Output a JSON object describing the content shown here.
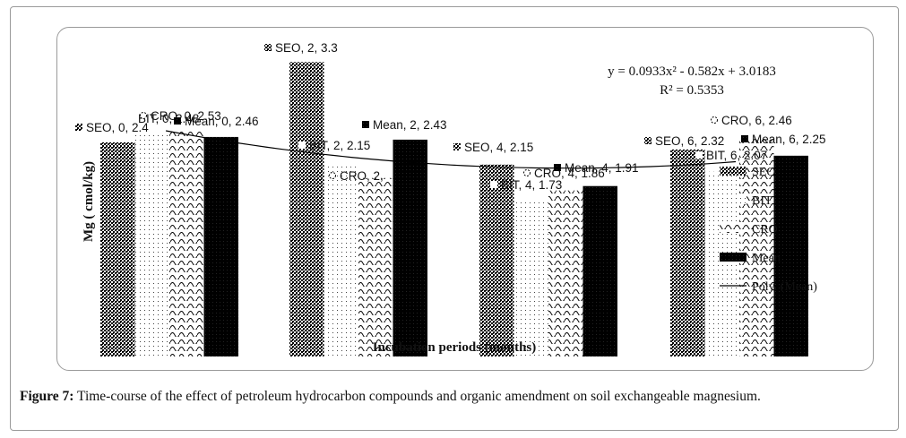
{
  "caption": {
    "label": "Figure 7:",
    "text": " Time-course of the effect of petroleum hydrocarbon compounds and organic amendment on soil exchangeable magnesium."
  },
  "chart_data": {
    "type": "bar",
    "ylabel": "Mg ( cmol/kg)",
    "xlabel": "Incubation periods (months)",
    "categories": [
      "0",
      "2",
      "4",
      "6"
    ],
    "series": [
      {
        "name": "SEO",
        "values": [
          2.4,
          3.3,
          2.15,
          2.32
        ],
        "pattern": "dense-check"
      },
      {
        "name": "BIT",
        "values": [
          2.48,
          2.15,
          1.73,
          2.07
        ],
        "pattern": "dotted"
      },
      {
        "name": "CRO",
        "values": [
          2.53,
          2.0,
          1.86,
          2.46
        ],
        "pattern": "wave"
      },
      {
        "name": "Mean",
        "values": [
          2.46,
          2.43,
          1.91,
          2.25
        ],
        "pattern": "solid"
      }
    ],
    "data_labels": [
      [
        "SEO, 0, 2.4",
        "BIT, 0, 2.48",
        "CRO, 0, 2.53",
        "Mean, 0, 2.46"
      ],
      [
        "SEO, 2, 3.3",
        "BIT, 2, 2.15",
        "CRO, 2,",
        "Mean, 2, 2.43"
      ],
      [
        "SEO, 4, 2.15",
        "BIT, 4, 1.73",
        "CRO, 4, 1.86",
        "Mean, 4, 1.91"
      ],
      [
        "SEO, 6, 2.32",
        "BIT, 6, 2.07",
        "CRO, 6, 2.46",
        "Mean, 6, 2.25"
      ]
    ],
    "trendline": {
      "name": "Poly. (Mean)",
      "equation": "y = 0.0933x² - 0.582x + 3.0183",
      "r2": "R² = 0.5353",
      "coef": [
        0.0933,
        -0.582,
        3.0183
      ]
    },
    "legend": {
      "position": "right",
      "entries": [
        "SEO",
        "BIT",
        "CRO",
        "Mean",
        "Poly. (Mean)"
      ]
    },
    "ylim": [
      0,
      3.5
    ],
    "grid": false,
    "colors": {
      "bar": "#000000",
      "line": "#000000",
      "text": "#111111"
    }
  }
}
